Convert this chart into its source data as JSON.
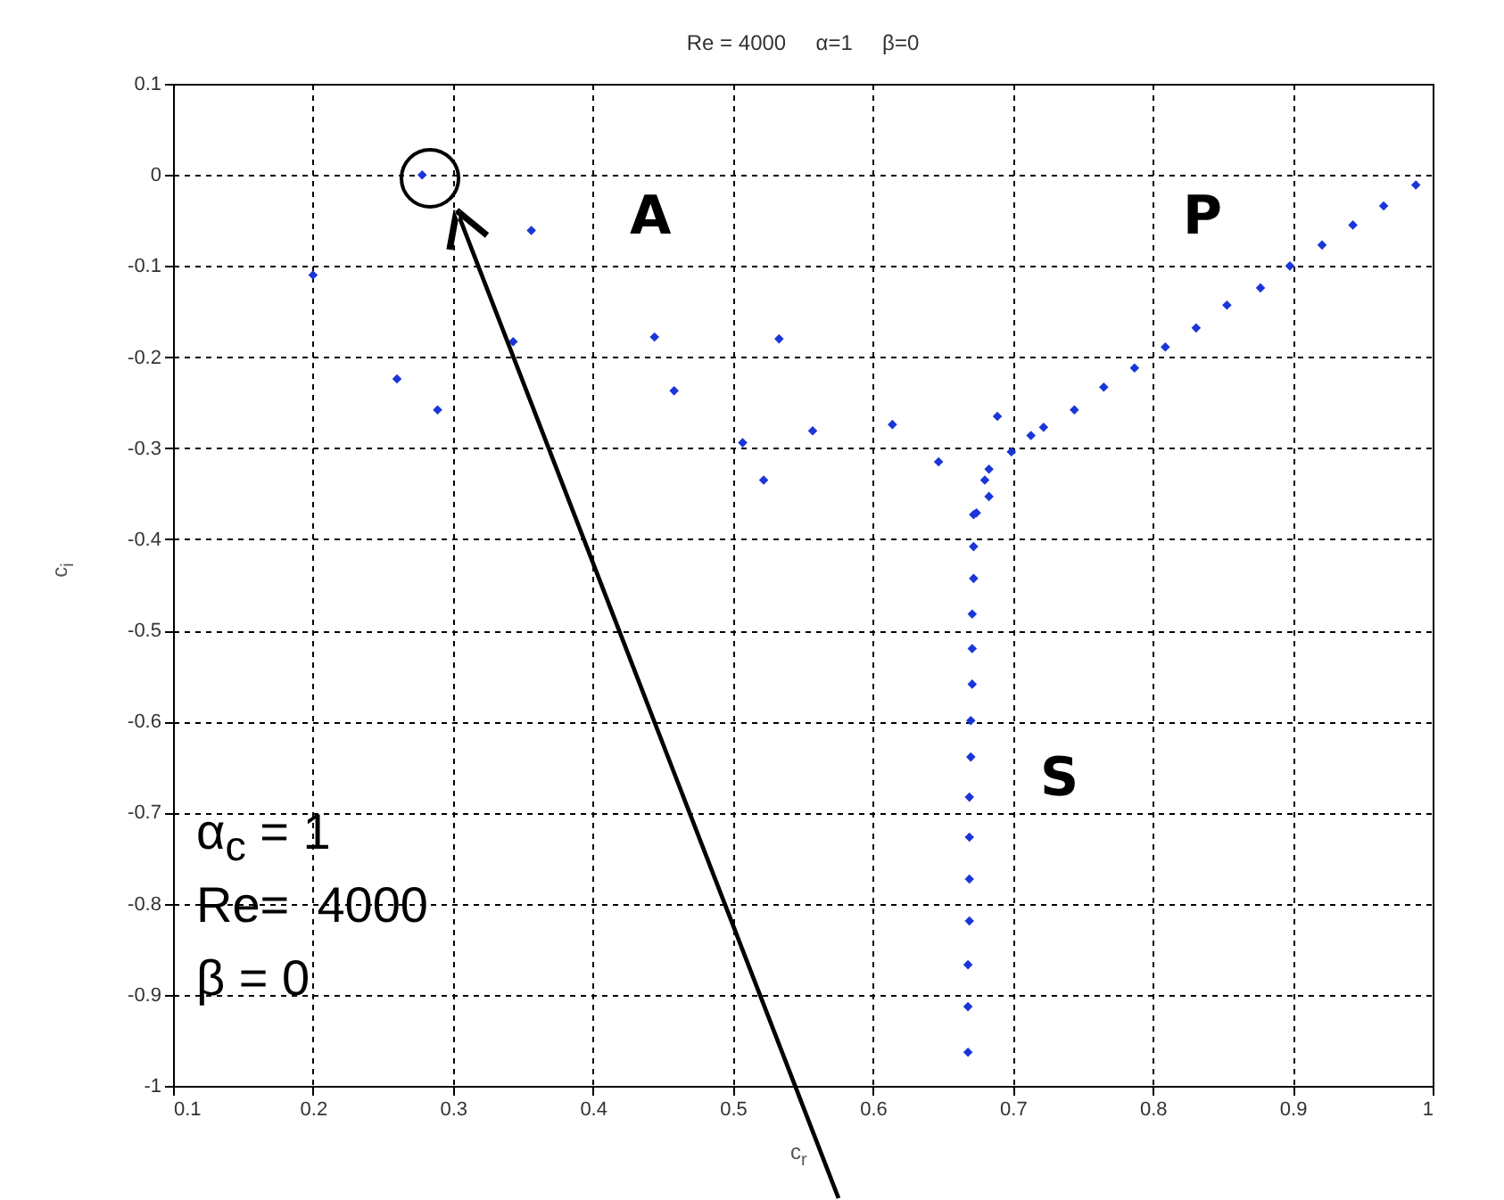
{
  "chart_data": {
    "type": "scatter",
    "title": "Re = 4000     α=1     β=0",
    "xlabel": "c$_{r}$",
    "ylabel": "c$_{i}$",
    "xlim": [
      0.1,
      1
    ],
    "ylim": [
      -1,
      0.1
    ],
    "xticks": [
      0.1,
      0.2,
      0.3,
      0.4,
      0.5,
      0.6,
      0.7,
      0.8,
      0.9,
      1
    ],
    "yticks": [
      0.1,
      0,
      -0.1,
      -0.2,
      -0.3,
      -0.4,
      -0.5,
      -0.6,
      -0.7,
      -0.8,
      -0.9,
      -1
    ],
    "grid": true,
    "marker": "diamond",
    "series": [
      {
        "color": "#1a36d8",
        "x": [
          0.278,
          0.356,
          0.2,
          0.343,
          0.26,
          0.289,
          0.444,
          0.458,
          0.533,
          0.507,
          0.557,
          0.522,
          0.614,
          0.647,
          0.988,
          0.965,
          0.943,
          0.921,
          0.898,
          0.877,
          0.853,
          0.831,
          0.809,
          0.787,
          0.765,
          0.744,
          0.722,
          0.713,
          0.689,
          0.699,
          0.683,
          0.68,
          0.683,
          0.672,
          0.674,
          0.672,
          0.672,
          0.671,
          0.671,
          0.671,
          0.67,
          0.67,
          0.669,
          0.669,
          0.669,
          0.669,
          0.668,
          0.668,
          0.668
        ],
        "values": [
          0.0,
          -0.061,
          -0.11,
          -0.183,
          -0.224,
          -0.258,
          -0.178,
          -0.237,
          -0.18,
          -0.294,
          -0.281,
          -0.335,
          -0.274,
          -0.315,
          -0.011,
          -0.034,
          -0.055,
          -0.077,
          -0.1,
          -0.124,
          -0.143,
          -0.168,
          -0.189,
          -0.212,
          -0.233,
          -0.258,
          -0.277,
          -0.286,
          -0.265,
          -0.304,
          -0.323,
          -0.335,
          -0.353,
          -0.373,
          -0.371,
          -0.408,
          -0.443,
          -0.482,
          -0.52,
          -0.559,
          -0.599,
          -0.639,
          -0.683,
          -0.727,
          -0.773,
          -0.819,
          -0.867,
          -0.913,
          -0.963
        ]
      }
    ],
    "annotations": [
      "A",
      "P",
      "S",
      "α$_{c}$ = 1",
      "Re=  4000",
      "β = 0"
    ]
  }
}
